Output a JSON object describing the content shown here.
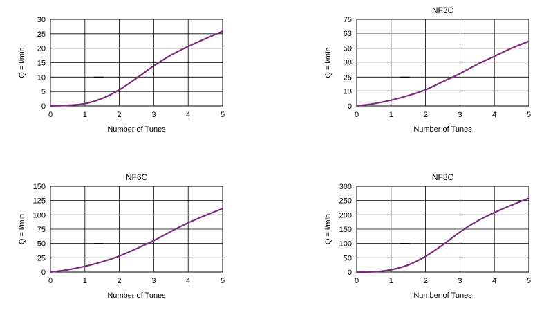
{
  "chart_data": [
    {
      "type": "line",
      "title": "",
      "xlabel": "Number of Tunes",
      "ylabel": "Q = l/min",
      "xlim": [
        0,
        5
      ],
      "ylim": [
        0,
        30
      ],
      "xticks": [
        0,
        1,
        2,
        3,
        4,
        5
      ],
      "yticks": [
        0,
        5,
        10,
        15,
        20,
        25,
        30
      ],
      "grid": true,
      "color": "#7a2b7e",
      "x": [
        0,
        0.5,
        1,
        1.5,
        2,
        2.5,
        3,
        3.5,
        4,
        4.5,
        5
      ],
      "y": [
        0,
        0.2,
        0.8,
        2.6,
        5.6,
        9.6,
        13.9,
        17.6,
        20.6,
        23.3,
        25.9
      ],
      "legend_marker_value": 10
    },
    {
      "type": "line",
      "title": "NF3C",
      "xlabel": "Number of Tunes",
      "ylabel": "Q = l/min",
      "xlim": [
        0,
        5
      ],
      "ylim": [
        0,
        75
      ],
      "xticks": [
        0,
        1,
        2,
        3,
        4,
        5
      ],
      "yticks": [
        0,
        13,
        25,
        38,
        50,
        63,
        75
      ],
      "grid": true,
      "color": "#7a2b7e",
      "x": [
        0,
        0.5,
        1,
        1.5,
        2,
        2.5,
        3,
        3.5,
        4,
        4.5,
        5
      ],
      "y": [
        0,
        2,
        5,
        9,
        14,
        21,
        28,
        36,
        43,
        50,
        56
      ],
      "legend_marker_value": 25
    },
    {
      "type": "line",
      "title": "NF6C",
      "xlabel": "Number of Tunes",
      "ylabel": "Q = l/min",
      "xlim": [
        0,
        5
      ],
      "ylim": [
        0,
        150
      ],
      "xticks": [
        0,
        1,
        2,
        3,
        4,
        5
      ],
      "yticks": [
        0,
        25,
        50,
        75,
        100,
        125,
        150
      ],
      "grid": true,
      "color": "#7a2b7e",
      "x": [
        0,
        0.5,
        1,
        1.5,
        2,
        2.5,
        3,
        3.5,
        4,
        4.5,
        5
      ],
      "y": [
        0,
        4,
        10,
        18,
        28,
        41,
        55,
        71,
        86,
        99,
        111
      ],
      "legend_marker_value": 50
    },
    {
      "type": "line",
      "title": "NF8C",
      "xlabel": "Number of Tunes",
      "ylabel": "Q = l/min",
      "xlim": [
        0,
        5
      ],
      "ylim": [
        0,
        300
      ],
      "xticks": [
        0,
        1,
        2,
        3,
        4,
        5
      ],
      "yticks": [
        0,
        50,
        100,
        150,
        200,
        250,
        300
      ],
      "grid": true,
      "color": "#7a2b7e",
      "x": [
        0,
        0.5,
        1,
        1.5,
        2,
        2.5,
        3,
        3.5,
        4,
        4.5,
        5
      ],
      "y": [
        0,
        1,
        8,
        25,
        55,
        95,
        140,
        178,
        208,
        234,
        258
      ],
      "legend_marker_value": 100
    }
  ]
}
